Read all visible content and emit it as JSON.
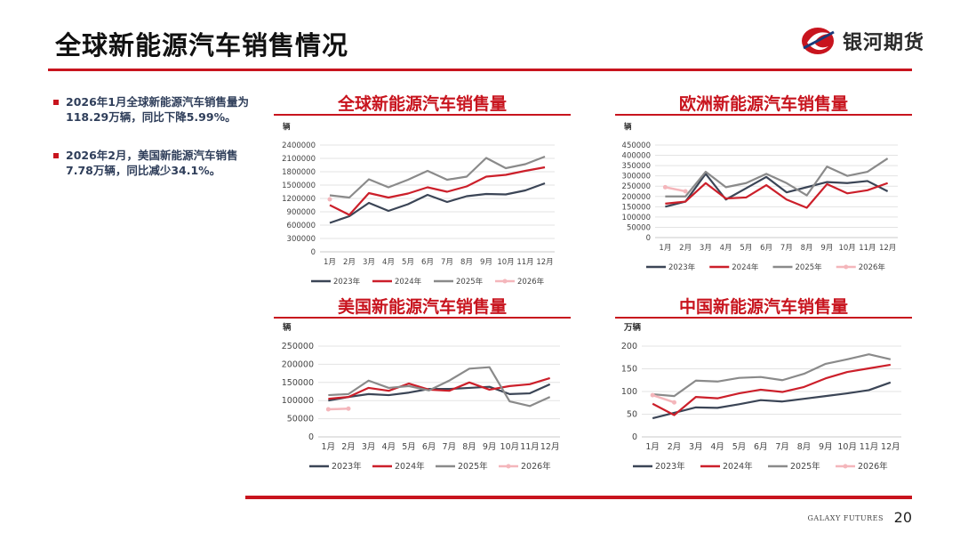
{
  "header": {
    "title": "全球新能源汽车销售情况",
    "logo_text": "银河期货"
  },
  "bullets": [
    "2026年1月全球新能源汽车销售量为118.29万辆，同比下降5.99%。",
    "2026年2月，美国新能源汽车销售7.78万辆，同比减少34.1%。"
  ],
  "colors": {
    "accent": "#c8141e",
    "s2023": "#3b4556",
    "s2024": "#cc1f2a",
    "s2025": "#8a8a8a",
    "s2026": "#f4b6bb"
  },
  "footer": {
    "brand": "GALAXY FUTURES",
    "page": "20"
  },
  "chart_data": [
    {
      "id": "global",
      "type": "line",
      "title": "全球新能源汽车销售量",
      "unit": "辆",
      "categories": [
        "1月",
        "2月",
        "3月",
        "4月",
        "5月",
        "6月",
        "7月",
        "8月",
        "9月",
        "10月",
        "11月",
        "12月"
      ],
      "yticks": [
        0,
        300000,
        600000,
        900000,
        1200000,
        1500000,
        1800000,
        2100000,
        2400000
      ],
      "ylim": [
        0,
        2400000
      ],
      "gridlines": true,
      "legend": "bottom",
      "series": [
        {
          "name": "2023年",
          "values": [
            650000,
            800000,
            1100000,
            920000,
            1070000,
            1280000,
            1120000,
            1250000,
            1300000,
            1290000,
            1380000,
            1540000
          ]
        },
        {
          "name": "2024年",
          "values": [
            1050000,
            830000,
            1320000,
            1220000,
            1310000,
            1450000,
            1350000,
            1470000,
            1690000,
            1730000,
            1820000,
            1900000
          ]
        },
        {
          "name": "2025年",
          "values": [
            1270000,
            1220000,
            1630000,
            1450000,
            1620000,
            1820000,
            1620000,
            1690000,
            2110000,
            1880000,
            1970000,
            2140000
          ]
        },
        {
          "name": "2026年",
          "values": [
            1180000,
            null,
            null,
            null,
            null,
            null,
            null,
            null,
            null,
            null,
            null,
            null
          ]
        }
      ]
    },
    {
      "id": "europe",
      "type": "line",
      "title": "欧洲新能源汽车销售量",
      "unit": "辆",
      "categories": [
        "1月",
        "2月",
        "3月",
        "4月",
        "5月",
        "6月",
        "7月",
        "8月",
        "9月",
        "10月",
        "11月",
        "12月"
      ],
      "yticks": [
        0,
        50000,
        100000,
        150000,
        200000,
        250000,
        300000,
        350000,
        400000,
        450000
      ],
      "ylim": [
        0,
        450000
      ],
      "gridlines": true,
      "legend": "bottom",
      "series": [
        {
          "name": "2023年",
          "values": [
            150000,
            175000,
            310000,
            185000,
            240000,
            295000,
            220000,
            245000,
            270000,
            265000,
            275000,
            225000
          ]
        },
        {
          "name": "2024年",
          "values": [
            165000,
            175000,
            265000,
            190000,
            195000,
            255000,
            185000,
            145000,
            260000,
            215000,
            230000,
            265000
          ]
        },
        {
          "name": "2025年",
          "values": [
            200000,
            200000,
            320000,
            245000,
            265000,
            310000,
            265000,
            205000,
            345000,
            300000,
            320000,
            385000
          ]
        },
        {
          "name": "2026年",
          "values": [
            245000,
            225000,
            null,
            null,
            null,
            null,
            null,
            null,
            null,
            null,
            null,
            null
          ]
        }
      ]
    },
    {
      "id": "usa",
      "type": "line",
      "title": "美国新能源汽车销售量",
      "unit": "辆",
      "categories": [
        "1月",
        "2月",
        "3月",
        "4月",
        "5月",
        "6月",
        "7月",
        "8月",
        "9月",
        "10月",
        "11月",
        "12月"
      ],
      "yticks": [
        0,
        50000,
        100000,
        150000,
        200000,
        250000
      ],
      "ylim": [
        0,
        250000
      ],
      "gridlines": true,
      "legend": "bottom",
      "series": [
        {
          "name": "2023年",
          "values": [
            100000,
            110000,
            118000,
            115000,
            122000,
            132000,
            132000,
            135000,
            138000,
            118000,
            120000,
            145000
          ]
        },
        {
          "name": "2024年",
          "values": [
            105000,
            110000,
            135000,
            127000,
            147000,
            130000,
            127000,
            150000,
            130000,
            140000,
            145000,
            162000
          ]
        },
        {
          "name": "2025年",
          "values": [
            115000,
            118000,
            155000,
            135000,
            140000,
            128000,
            155000,
            188000,
            192000,
            98000,
            85000,
            110000
          ]
        },
        {
          "name": "2026年",
          "values": [
            76000,
            77800,
            null,
            null,
            null,
            null,
            null,
            null,
            null,
            null,
            null,
            null
          ]
        }
      ]
    },
    {
      "id": "china",
      "type": "line",
      "title": "中国新能源汽车销售量",
      "unit": "万辆",
      "categories": [
        "1月",
        "2月",
        "3月",
        "4月",
        "5月",
        "6月",
        "7月",
        "8月",
        "9月",
        "10月",
        "11月",
        "12月"
      ],
      "yticks": [
        0,
        50,
        100,
        150,
        200
      ],
      "ylim": [
        0,
        200
      ],
      "gridlines": true,
      "legend": "bottom",
      "series": [
        {
          "name": "2023年",
          "values": [
            41,
            53,
            65,
            64,
            72,
            81,
            78,
            84,
            90,
            96,
            103,
            120
          ]
        },
        {
          "name": "2024年",
          "values": [
            73,
            48,
            88,
            85,
            96,
            104,
            99,
            110,
            129,
            143,
            151,
            159
          ]
        },
        {
          "name": "2025年",
          "values": [
            94,
            90,
            124,
            122,
            130,
            132,
            125,
            139,
            161,
            171,
            182,
            171
          ]
        },
        {
          "name": "2026年",
          "values": [
            92,
            76,
            null,
            null,
            null,
            null,
            null,
            null,
            null,
            null,
            null,
            null
          ]
        }
      ]
    }
  ]
}
